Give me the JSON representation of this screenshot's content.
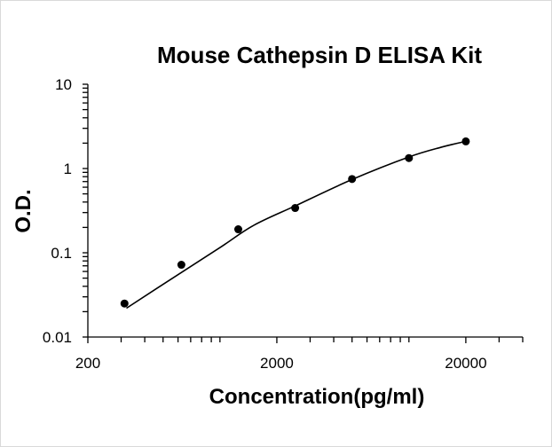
{
  "chart_data": {
    "type": "scatter",
    "title": "Mouse Cathepsin D ELISA Kit",
    "xlabel": "Concentration(pg/ml)",
    "ylabel": "O.D.",
    "x_scale": "log",
    "y_scale": "log",
    "xlim": [
      200,
      40000
    ],
    "ylim": [
      0.01,
      10
    ],
    "x_ticks": [
      {
        "value": 200,
        "label": "200"
      },
      {
        "value": 2000,
        "label": "2000"
      },
      {
        "value": 20000,
        "label": "20000"
      }
    ],
    "y_ticks": [
      {
        "value": 0.01,
        "label": "0.01"
      },
      {
        "value": 0.1,
        "label": "0.1"
      },
      {
        "value": 1,
        "label": "1"
      },
      {
        "value": 10,
        "label": "10"
      }
    ],
    "grid": false,
    "legend": "none",
    "series": [
      {
        "x": [
          312.5,
          625,
          1250,
          2500,
          5000,
          10000,
          20000
        ],
        "y": [
          0.025,
          0.072,
          0.19,
          0.34,
          0.75,
          1.33,
          2.1
        ]
      }
    ],
    "fit_curve": {
      "x": [
        320,
        600,
        1000,
        1500,
        2500,
        5000,
        10000,
        15000,
        20000
      ],
      "y": [
        0.022,
        0.055,
        0.115,
        0.21,
        0.36,
        0.74,
        1.37,
        1.8,
        2.1
      ]
    }
  }
}
